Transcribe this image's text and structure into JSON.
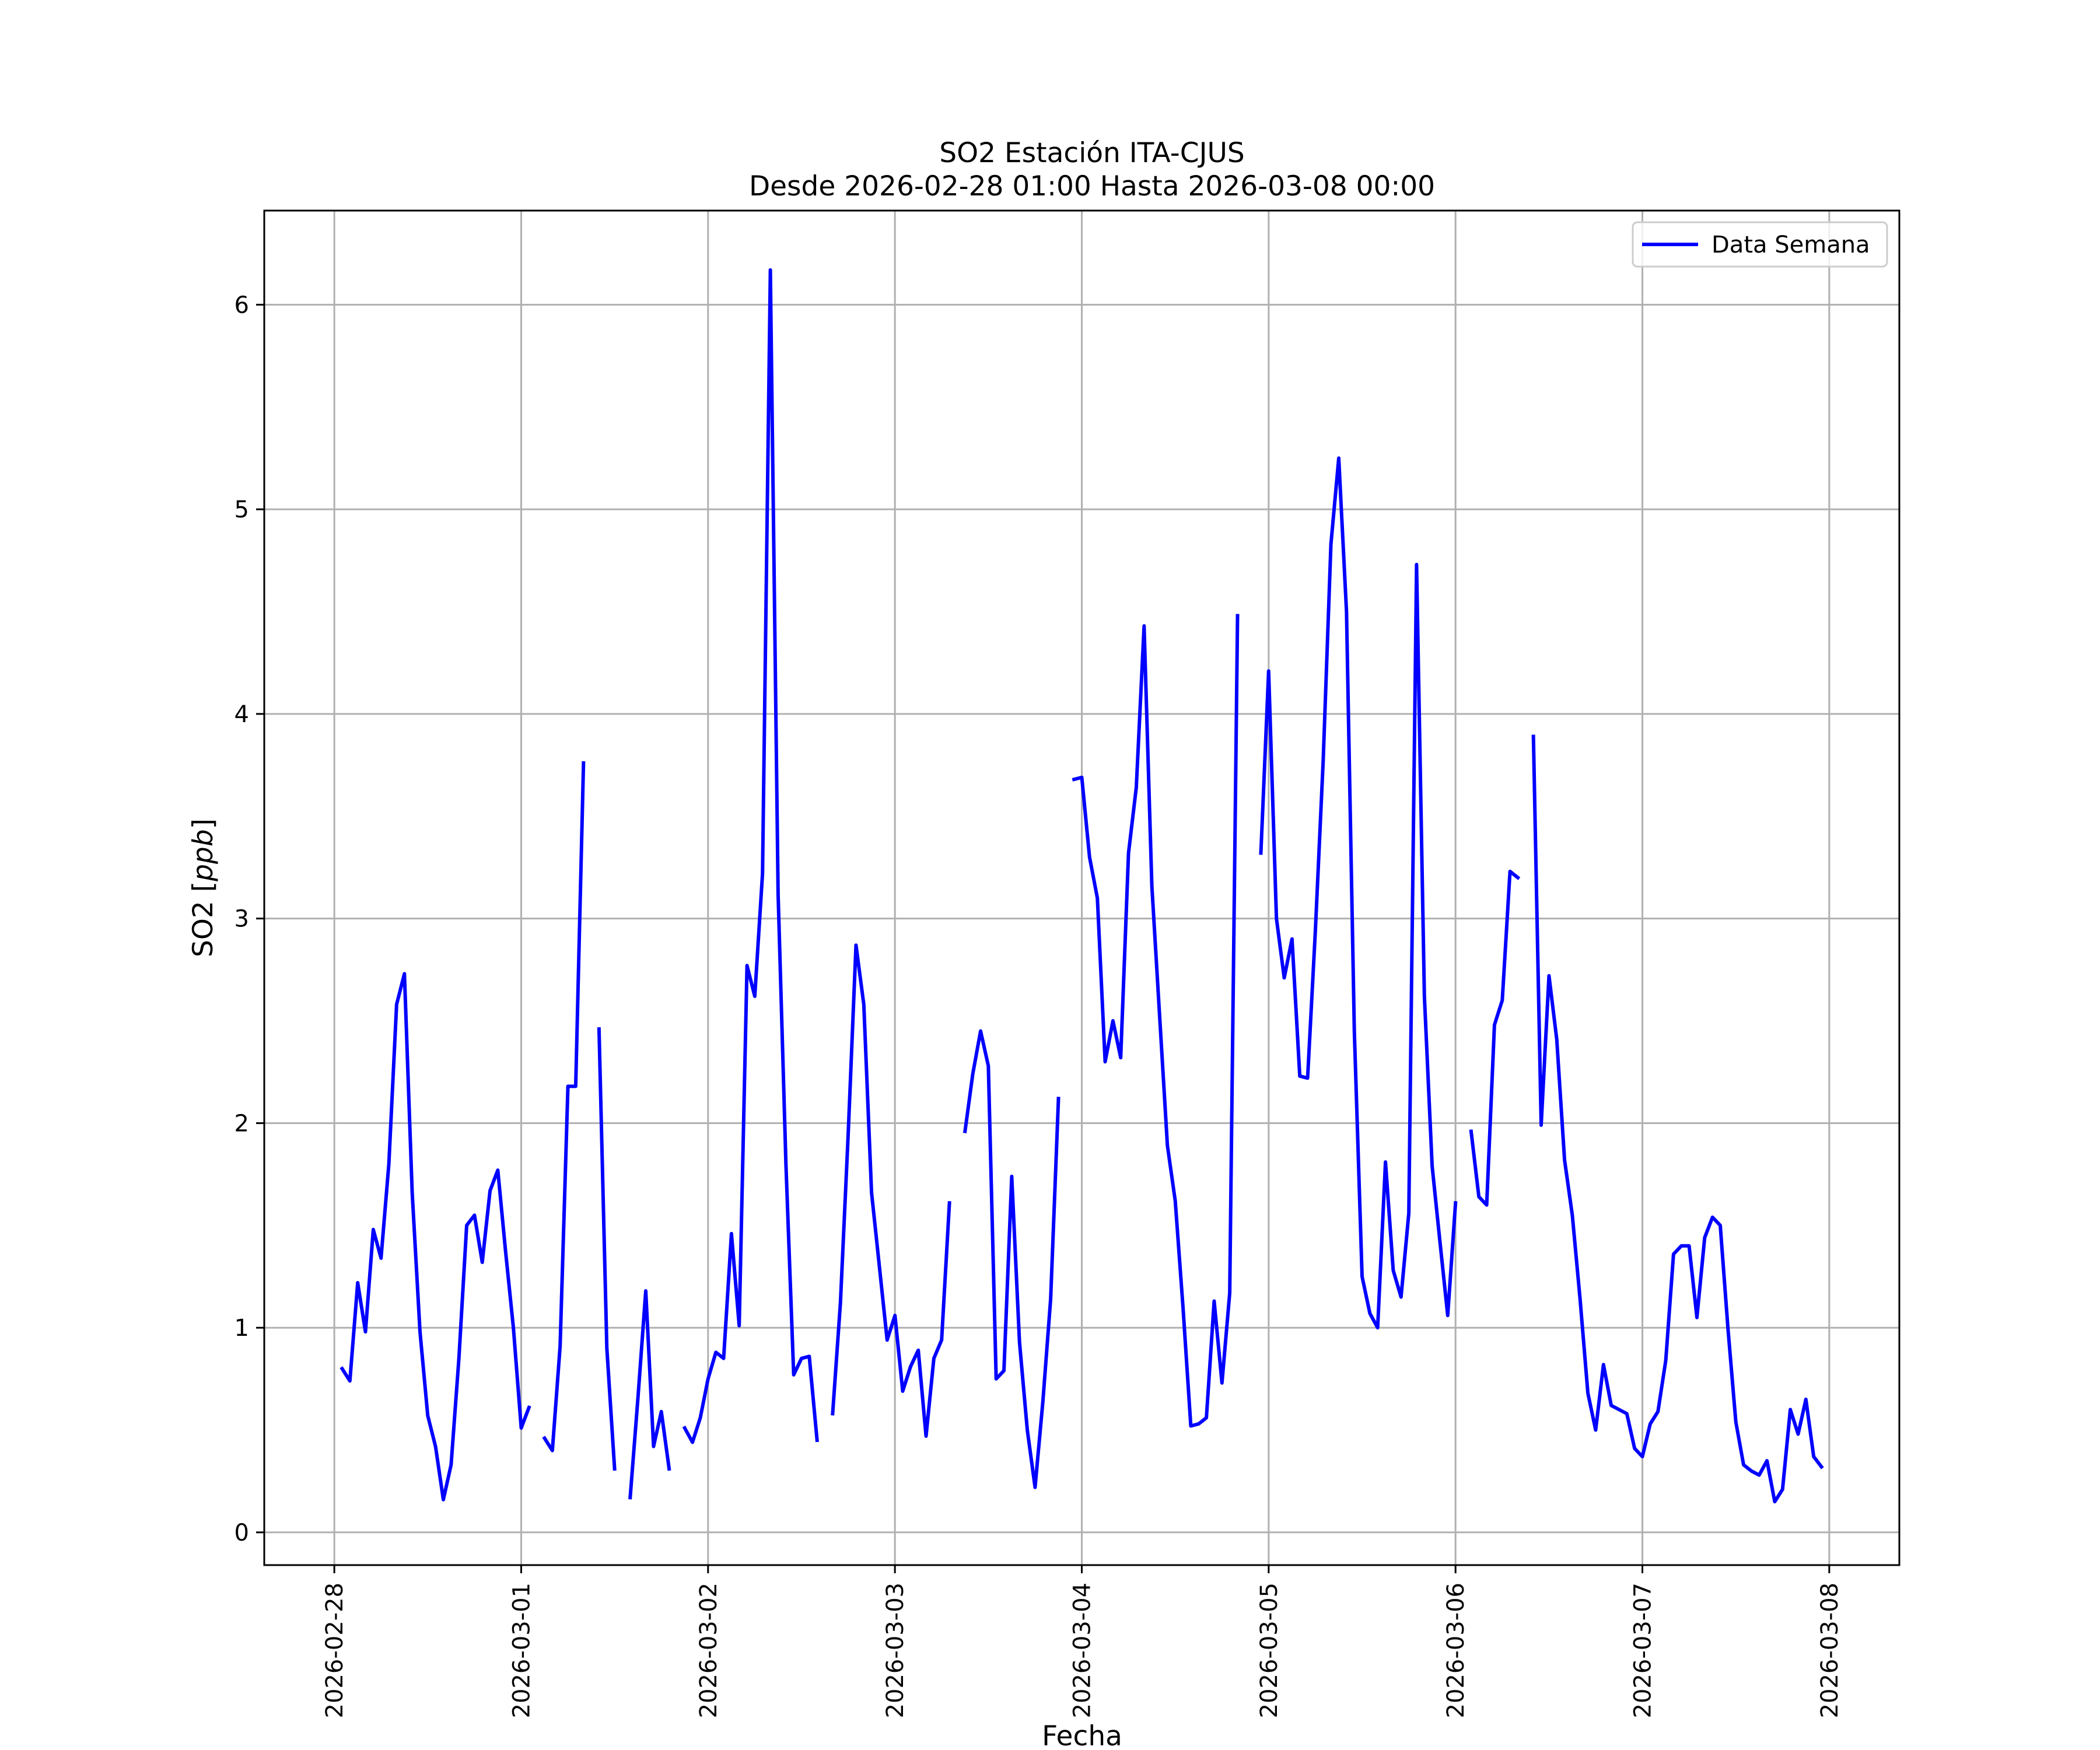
{
  "chart_data": {
    "type": "line",
    "title": "SO2 Estación ITA-CJUS",
    "subtitle": "Desde 2026-02-28 01:00 Hasta 2026-03-08 00:00",
    "xlabel": "Fecha",
    "ylabel": "SO2 [ppb]",
    "ylabel_parts": {
      "prefix": "SO2 [",
      "unit": "ppb",
      "suffix": "]"
    },
    "grid": true,
    "legend_position": "top-right",
    "xlim": [
      "2026-02-27 15:00",
      "2026-03-08 09:00"
    ],
    "ylim": [
      -0.16,
      6.46
    ],
    "x_ticks": [
      "2026-02-28",
      "2026-03-01",
      "2026-03-02",
      "2026-03-03",
      "2026-03-04",
      "2026-03-05",
      "2026-03-06",
      "2026-03-07",
      "2026-03-08"
    ],
    "y_ticks": [
      "0",
      "1",
      "2",
      "3",
      "4",
      "5",
      "6"
    ],
    "series": [
      {
        "name": "Data Semana",
        "color": "#0000ff",
        "points": [
          [
            "2026-02-28 01:00",
            0.8
          ],
          [
            "2026-02-28 02:00",
            0.74
          ],
          [
            "2026-02-28 03:00",
            1.22
          ],
          [
            "2026-02-28 04:00",
            0.98
          ],
          [
            "2026-02-28 05:00",
            1.48
          ],
          [
            "2026-02-28 06:00",
            1.34
          ],
          [
            "2026-02-28 07:00",
            1.8
          ],
          [
            "2026-02-28 08:00",
            2.58
          ],
          [
            "2026-02-28 09:00",
            2.73
          ],
          [
            "2026-02-28 10:00",
            1.66
          ],
          [
            "2026-02-28 11:00",
            0.98
          ],
          [
            "2026-02-28 12:00",
            0.57
          ],
          [
            "2026-02-28 13:00",
            0.42
          ],
          [
            "2026-02-28 14:00",
            0.16
          ],
          [
            "2026-02-28 15:00",
            0.33
          ],
          [
            "2026-02-28 16:00",
            0.85
          ],
          [
            "2026-02-28 17:00",
            1.5
          ],
          [
            "2026-02-28 18:00",
            1.55
          ],
          [
            "2026-02-28 19:00",
            1.32
          ],
          [
            "2026-02-28 20:00",
            1.67
          ],
          [
            "2026-02-28 21:00",
            1.77
          ],
          [
            "2026-02-28 22:00",
            1.37
          ],
          [
            "2026-02-28 23:00",
            1.0
          ],
          [
            "2026-03-01 00:00",
            0.51
          ],
          [
            "2026-03-01 01:00",
            0.61
          ],
          null,
          [
            "2026-03-01 03:00",
            0.46
          ],
          [
            "2026-03-01 04:00",
            0.4
          ],
          [
            "2026-03-01 05:00",
            0.91
          ],
          [
            "2026-03-01 06:00",
            2.18
          ],
          [
            "2026-03-01 07:00",
            2.18
          ],
          [
            "2026-03-01 08:00",
            3.76
          ],
          null,
          [
            "2026-03-01 10:00",
            2.46
          ],
          [
            "2026-03-01 11:00",
            0.9
          ],
          [
            "2026-03-01 12:00",
            0.31
          ],
          null,
          [
            "2026-03-01 14:00",
            0.17
          ],
          [
            "2026-03-01 15:00",
            0.66
          ],
          [
            "2026-03-01 16:00",
            1.18
          ],
          [
            "2026-03-01 17:00",
            0.42
          ],
          [
            "2026-03-01 18:00",
            0.59
          ],
          [
            "2026-03-01 19:00",
            0.31
          ],
          null,
          [
            "2026-03-01 21:00",
            0.51
          ],
          [
            "2026-03-01 22:00",
            0.44
          ],
          [
            "2026-03-01 23:00",
            0.56
          ],
          [
            "2026-03-02 00:00",
            0.75
          ],
          [
            "2026-03-02 01:00",
            0.88
          ],
          [
            "2026-03-02 02:00",
            0.85
          ],
          [
            "2026-03-02 03:00",
            1.46
          ],
          [
            "2026-03-02 04:00",
            1.01
          ],
          [
            "2026-03-02 05:00",
            2.77
          ],
          [
            "2026-03-02 06:00",
            2.62
          ],
          [
            "2026-03-02 07:00",
            3.22
          ],
          [
            "2026-03-02 08:00",
            6.17
          ],
          [
            "2026-03-02 09:00",
            3.12
          ],
          [
            "2026-03-02 10:00",
            1.8
          ],
          [
            "2026-03-02 11:00",
            0.77
          ],
          [
            "2026-03-02 12:00",
            0.85
          ],
          [
            "2026-03-02 13:00",
            0.86
          ],
          [
            "2026-03-02 14:00",
            0.45
          ],
          null,
          [
            "2026-03-02 16:00",
            0.58
          ],
          [
            "2026-03-02 17:00",
            1.12
          ],
          [
            "2026-03-02 18:00",
            1.95
          ],
          [
            "2026-03-02 19:00",
            2.87
          ],
          [
            "2026-03-02 20:00",
            2.58
          ],
          [
            "2026-03-02 21:00",
            1.66
          ],
          [
            "2026-03-02 22:00",
            1.3
          ],
          [
            "2026-03-02 23:00",
            0.94
          ],
          [
            "2026-03-03 00:00",
            1.06
          ],
          [
            "2026-03-03 01:00",
            0.69
          ],
          [
            "2026-03-03 02:00",
            0.81
          ],
          [
            "2026-03-03 03:00",
            0.89
          ],
          [
            "2026-03-03 04:00",
            0.47
          ],
          [
            "2026-03-03 05:00",
            0.85
          ],
          [
            "2026-03-03 06:00",
            0.94
          ],
          [
            "2026-03-03 07:00",
            1.61
          ],
          null,
          [
            "2026-03-03 09:00",
            1.96
          ],
          [
            "2026-03-03 10:00",
            2.24
          ],
          [
            "2026-03-03 11:00",
            2.45
          ],
          [
            "2026-03-03 12:00",
            2.28
          ],
          [
            "2026-03-03 13:00",
            0.75
          ],
          [
            "2026-03-03 14:00",
            0.79
          ],
          [
            "2026-03-03 15:00",
            1.74
          ],
          [
            "2026-03-03 16:00",
            0.93
          ],
          [
            "2026-03-03 17:00",
            0.5
          ],
          [
            "2026-03-03 18:00",
            0.22
          ],
          [
            "2026-03-03 19:00",
            0.64
          ],
          [
            "2026-03-03 20:00",
            1.14
          ],
          [
            "2026-03-03 21:00",
            2.12
          ],
          null,
          [
            "2026-03-03 23:00",
            3.68
          ],
          [
            "2026-03-04 00:00",
            3.69
          ],
          [
            "2026-03-04 01:00",
            3.3
          ],
          [
            "2026-03-04 02:00",
            3.1
          ],
          [
            "2026-03-04 03:00",
            2.3
          ],
          [
            "2026-03-04 04:00",
            2.5
          ],
          [
            "2026-03-04 05:00",
            2.32
          ],
          [
            "2026-03-04 06:00",
            3.32
          ],
          [
            "2026-03-04 07:00",
            3.64
          ],
          [
            "2026-03-04 08:00",
            4.43
          ],
          [
            "2026-03-04 09:00",
            3.16
          ],
          [
            "2026-03-04 10:00",
            2.52
          ],
          [
            "2026-03-04 11:00",
            1.89
          ],
          [
            "2026-03-04 12:00",
            1.62
          ],
          [
            "2026-03-04 13:00",
            1.1
          ],
          [
            "2026-03-04 14:00",
            0.52
          ],
          [
            "2026-03-04 15:00",
            0.53
          ],
          [
            "2026-03-04 16:00",
            0.56
          ],
          [
            "2026-03-04 17:00",
            1.13
          ],
          [
            "2026-03-04 18:00",
            0.73
          ],
          [
            "2026-03-04 19:00",
            1.17
          ],
          [
            "2026-03-04 20:00",
            4.48
          ],
          null,
          [
            "2026-03-04 23:00",
            3.32
          ],
          [
            "2026-03-05 00:00",
            4.21
          ],
          [
            "2026-03-05 01:00",
            3.0
          ],
          [
            "2026-03-05 02:00",
            2.71
          ],
          [
            "2026-03-05 03:00",
            2.9
          ],
          [
            "2026-03-05 04:00",
            2.23
          ],
          [
            "2026-03-05 05:00",
            2.22
          ],
          [
            "2026-03-05 06:00",
            2.94
          ],
          [
            "2026-03-05 07:00",
            3.77
          ],
          [
            "2026-03-05 08:00",
            4.83
          ],
          [
            "2026-03-05 09:00",
            5.25
          ],
          [
            "2026-03-05 10:00",
            4.5
          ],
          [
            "2026-03-05 11:00",
            2.45
          ],
          [
            "2026-03-05 12:00",
            1.25
          ],
          [
            "2026-03-05 13:00",
            1.07
          ],
          [
            "2026-03-05 14:00",
            1.0
          ],
          [
            "2026-03-05 15:00",
            1.81
          ],
          [
            "2026-03-05 16:00",
            1.28
          ],
          [
            "2026-03-05 17:00",
            1.15
          ],
          [
            "2026-03-05 18:00",
            1.56
          ],
          [
            "2026-03-05 19:00",
            4.73
          ],
          [
            "2026-03-05 20:00",
            2.62
          ],
          [
            "2026-03-05 21:00",
            1.79
          ],
          [
            "2026-03-05 22:00",
            1.42
          ],
          [
            "2026-03-05 23:00",
            1.06
          ],
          [
            "2026-03-06 00:00",
            1.61
          ],
          null,
          [
            "2026-03-06 02:00",
            1.96
          ],
          [
            "2026-03-06 03:00",
            1.64
          ],
          [
            "2026-03-06 04:00",
            1.6
          ],
          [
            "2026-03-06 05:00",
            2.48
          ],
          [
            "2026-03-06 06:00",
            2.6
          ],
          [
            "2026-03-06 07:00",
            3.23
          ],
          [
            "2026-03-06 08:00",
            3.2
          ],
          null,
          [
            "2026-03-06 10:00",
            3.89
          ],
          [
            "2026-03-06 11:00",
            1.99
          ],
          [
            "2026-03-06 12:00",
            2.72
          ],
          [
            "2026-03-06 13:00",
            2.41
          ],
          [
            "2026-03-06 14:00",
            1.82
          ],
          [
            "2026-03-06 15:00",
            1.55
          ],
          [
            "2026-03-06 16:00",
            1.14
          ],
          [
            "2026-03-06 17:00",
            0.68
          ],
          [
            "2026-03-06 18:00",
            0.5
          ],
          [
            "2026-03-06 19:00",
            0.82
          ],
          [
            "2026-03-06 20:00",
            0.62
          ],
          [
            "2026-03-06 21:00",
            0.6
          ],
          [
            "2026-03-06 22:00",
            0.58
          ],
          [
            "2026-03-06 23:00",
            0.41
          ],
          [
            "2026-03-07 00:00",
            0.37
          ],
          [
            "2026-03-07 01:00",
            0.53
          ],
          [
            "2026-03-07 02:00",
            0.59
          ],
          [
            "2026-03-07 03:00",
            0.84
          ],
          [
            "2026-03-07 04:00",
            1.36
          ],
          [
            "2026-03-07 05:00",
            1.4
          ],
          [
            "2026-03-07 06:00",
            1.4
          ],
          [
            "2026-03-07 07:00",
            1.05
          ],
          [
            "2026-03-07 08:00",
            1.44
          ],
          [
            "2026-03-07 09:00",
            1.54
          ],
          [
            "2026-03-07 10:00",
            1.5
          ],
          [
            "2026-03-07 11:00",
            0.99
          ],
          [
            "2026-03-07 12:00",
            0.54
          ],
          [
            "2026-03-07 13:00",
            0.33
          ],
          [
            "2026-03-07 14:00",
            0.3
          ],
          [
            "2026-03-07 15:00",
            0.28
          ],
          [
            "2026-03-07 16:00",
            0.35
          ],
          [
            "2026-03-07 17:00",
            0.15
          ],
          [
            "2026-03-07 18:00",
            0.21
          ],
          [
            "2026-03-07 19:00",
            0.6
          ],
          [
            "2026-03-07 20:00",
            0.48
          ],
          [
            "2026-03-07 21:00",
            0.65
          ],
          [
            "2026-03-07 22:00",
            0.37
          ],
          [
            "2026-03-07 23:00",
            0.32
          ]
        ]
      }
    ]
  }
}
